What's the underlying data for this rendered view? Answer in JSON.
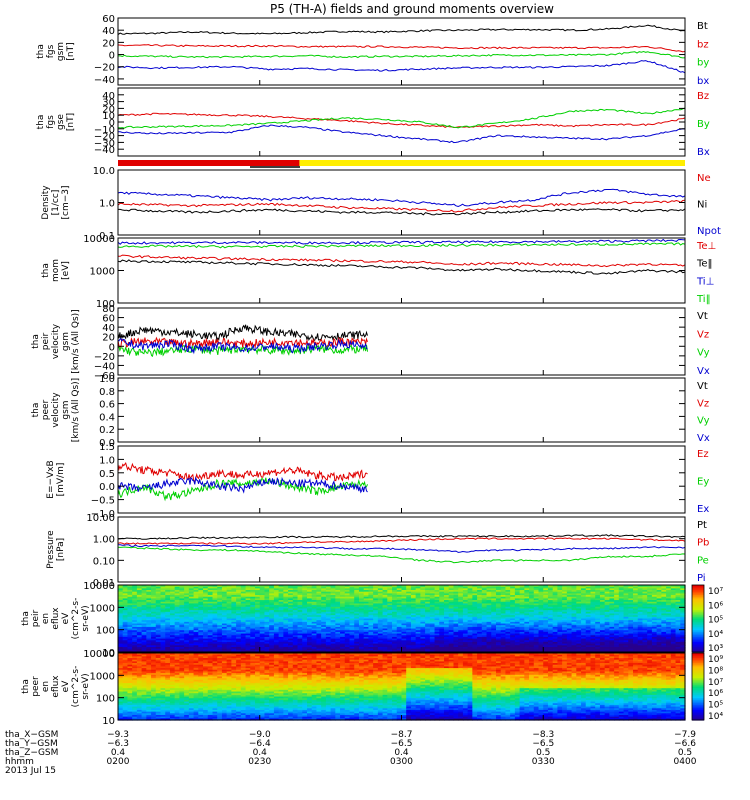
{
  "title": "P5 (TH-A) fields and ground moments overview",
  "colors": {
    "black": "#000000",
    "red": "#e00000",
    "green": "#00d000",
    "blue": "#0000d0",
    "yellow": "#ffee00"
  },
  "chart_data": [
    {
      "id": "fgs_gsm",
      "type": "line",
      "ylabel": [
        "tha",
        "fgs",
        "gsm",
        "[nT]"
      ],
      "ylim": [
        -50,
        60
      ],
      "log": false,
      "ticks": [
        "60",
        "40",
        "20",
        "0",
        "−20",
        "−40"
      ],
      "tickvals": [
        60,
        40,
        20,
        0,
        -20,
        -40
      ],
      "series": [
        {
          "name": "Bt",
          "color": "#000000",
          "approx": [
            34,
            35,
            37,
            35,
            34,
            36,
            38,
            37,
            39,
            40,
            41,
            41,
            40,
            42,
            48,
            38
          ]
        },
        {
          "name": "bz",
          "color": "#e00000",
          "approx": [
            15,
            15,
            14,
            14,
            14,
            13,
            13,
            13,
            12,
            11,
            11,
            11,
            11,
            11,
            13,
            5
          ]
        },
        {
          "name": "by",
          "color": "#00d000",
          "approx": [
            -2,
            -3,
            -4,
            -4,
            -3,
            -2,
            -4,
            -3,
            -3,
            -2,
            -1,
            -1,
            -1,
            0,
            5,
            -5
          ]
        },
        {
          "name": "bx",
          "color": "#0000d0",
          "approx": [
            -20,
            -22,
            -21,
            -20,
            -24,
            -23,
            -25,
            -26,
            -24,
            -22,
            -21,
            -21,
            -20,
            -18,
            -10,
            -30
          ]
        }
      ]
    },
    {
      "id": "fgs_gse",
      "type": "line",
      "ylabel": [
        "tha",
        "fgs",
        "gse",
        "[nT]"
      ],
      "ylim": [
        -50,
        50
      ],
      "log": false,
      "ticks": [
        "40",
        "30",
        "20",
        "10",
        "0",
        "−10",
        "−20",
        "−30",
        "−40"
      ],
      "tickvals": [
        40,
        30,
        20,
        10,
        0,
        -10,
        -20,
        -30,
        -40
      ],
      "series": [
        {
          "name": "Bz",
          "color": "#e00000",
          "approx": [
            10,
            12,
            11,
            10,
            8,
            5,
            2,
            -2,
            -5,
            -8,
            -6,
            -4,
            -6,
            -4,
            -4,
            5
          ]
        },
        {
          "name": "By",
          "color": "#00d000",
          "approx": [
            -8,
            -7,
            -6,
            -5,
            -2,
            2,
            6,
            4,
            0,
            -8,
            -2,
            5,
            16,
            18,
            12,
            20
          ]
        },
        {
          "name": "Bx",
          "color": "#0000d0",
          "approx": [
            -15,
            -17,
            -16,
            -15,
            -5,
            -8,
            -15,
            -20,
            -25,
            -30,
            -20,
            -22,
            -24,
            -25,
            -20,
            -10
          ]
        }
      ]
    },
    {
      "id": "density",
      "type": "line",
      "ylabel": [
        "Density",
        "[1/cc]",
        "[cm−3]"
      ],
      "ylim": [
        0.1,
        10
      ],
      "log": true,
      "ticks": [
        "10.0",
        "1.0",
        "0.1"
      ],
      "tickvals": [
        10,
        1,
        0.1
      ],
      "series": [
        {
          "name": "Ne",
          "color": "#e00000",
          "approx": [
            0.9,
            0.85,
            0.8,
            0.85,
            0.9,
            0.8,
            0.7,
            0.65,
            0.6,
            0.55,
            0.7,
            0.8,
            0.9,
            1.0,
            1.0,
            1.1
          ]
        },
        {
          "name": "Ni",
          "color": "#000000",
          "approx": [
            0.6,
            0.55,
            0.5,
            0.55,
            0.6,
            0.55,
            0.5,
            0.5,
            0.45,
            0.45,
            0.5,
            0.55,
            0.6,
            0.6,
            0.55,
            0.6
          ]
        },
        {
          "name": "Npot",
          "color": "#0000d0",
          "approx": [
            2.0,
            1.8,
            1.6,
            1.4,
            1.2,
            1.4,
            1.3,
            1.2,
            1.0,
            0.8,
            1.0,
            1.2,
            2.0,
            2.5,
            1.8,
            1.5
          ]
        }
      ]
    },
    {
      "id": "temperature",
      "type": "line",
      "ylabel": [
        "tha",
        "mom",
        "[eV]"
      ],
      "ylim": [
        100,
        10000
      ],
      "log": true,
      "ticks": [
        "10000",
        "1000",
        "100"
      ],
      "tickvals": [
        10000,
        1000,
        100
      ],
      "series": [
        {
          "name": "Te⊥",
          "color": "#e00000",
          "approx": [
            2800,
            2600,
            2400,
            2300,
            2200,
            2100,
            2000,
            1900,
            1800,
            1500,
            1700,
            1600,
            1500,
            1400,
            1600,
            1400
          ]
        },
        {
          "name": "Te‖",
          "color": "#000000",
          "approx": [
            2000,
            1900,
            1800,
            1700,
            1600,
            1500,
            1400,
            1300,
            1200,
            1000,
            1100,
            1000,
            900,
            800,
            1000,
            900
          ]
        },
        {
          "name": "Ti⊥",
          "color": "#0000d0",
          "approx": [
            7000,
            7100,
            7200,
            7300,
            7200,
            7100,
            7200,
            7300,
            7400,
            7500,
            7600,
            7700,
            7800,
            8000,
            8200,
            8500
          ]
        },
        {
          "name": "Ti‖",
          "color": "#00d000",
          "approx": [
            5500,
            5600,
            5500,
            5400,
            5500,
            5600,
            5700,
            5800,
            5900,
            6000,
            6100,
            6200,
            6300,
            6400,
            6500,
            6600
          ]
        }
      ]
    },
    {
      "id": "peir_velocity",
      "type": "line",
      "ylabel": [
        "tha",
        "peir",
        "velocity",
        "gsm",
        "[km/s (All Qs)]"
      ],
      "ylim": [
        -60,
        80
      ],
      "log": false,
      "xrange": [
        0,
        0.44
      ],
      "ticks": [
        "80",
        "60",
        "40",
        "20",
        "0",
        "−20",
        "−40",
        "−60"
      ],
      "tickvals": [
        80,
        60,
        40,
        20,
        0,
        -20,
        -40,
        -60
      ],
      "series": [
        {
          "name": "Vt",
          "color": "#000000",
          "approx": [
            20,
            35,
            30,
            25,
            20,
            40,
            30,
            25,
            20,
            22,
            25
          ]
        },
        {
          "name": "Vz",
          "color": "#e00000",
          "approx": [
            5,
            10,
            8,
            5,
            10,
            5,
            8,
            10,
            5,
            10,
            8
          ]
        },
        {
          "name": "Vy",
          "color": "#00d000",
          "approx": [
            -5,
            -15,
            -10,
            -5,
            -10,
            -5,
            -8,
            -10,
            -5,
            -8,
            -5
          ]
        },
        {
          "name": "Vx",
          "color": "#0000d0",
          "approx": [
            10,
            0,
            5,
            -5,
            0,
            -5,
            0,
            -5,
            0,
            5,
            0
          ]
        }
      ]
    },
    {
      "id": "peer_velocity",
      "type": "line",
      "ylabel": [
        "tha",
        "peer",
        "velocity",
        "gsm",
        "[km/s (All Qs)]"
      ],
      "ylim": [
        0,
        1
      ],
      "log": false,
      "ticks": [
        "1.0",
        "0.8",
        "0.6",
        "0.4",
        "0.2",
        "0.0"
      ],
      "tickvals": [
        1,
        0.8,
        0.6,
        0.4,
        0.2,
        0
      ],
      "series": [
        {
          "name": "Vt",
          "color": "#000000",
          "approx": []
        },
        {
          "name": "Vz",
          "color": "#e00000",
          "approx": []
        },
        {
          "name": "Vy",
          "color": "#00d000",
          "approx": []
        },
        {
          "name": "Vx",
          "color": "#0000d0",
          "approx": []
        }
      ]
    },
    {
      "id": "efield",
      "type": "line",
      "ylabel": [
        "E=−VxB",
        "[mV/m]"
      ],
      "ylim": [
        -1,
        1.5
      ],
      "log": false,
      "xrange": [
        0,
        0.44
      ],
      "ticks": [
        "1.5",
        "1.0",
        "0.5",
        "0.0",
        "−0.5",
        "−1.0"
      ],
      "tickvals": [
        1.5,
        1,
        0.5,
        0,
        -0.5,
        -1
      ],
      "series": [
        {
          "name": "Ez",
          "color": "#e00000",
          "approx": [
            0.8,
            0.6,
            0.5,
            0.3,
            0.5,
            0.4,
            0.5,
            0.6,
            0.4,
            0.3,
            0.5
          ]
        },
        {
          "name": "Ey",
          "color": "#00d000",
          "approx": [
            -0.3,
            0,
            -0.4,
            -0.2,
            0.1,
            0.1,
            0.2,
            0,
            -0.2,
            0,
            0.1
          ]
        },
        {
          "name": "Ex",
          "color": "#0000d0",
          "approx": [
            0,
            -0.1,
            0.1,
            0.2,
            0,
            -0.1,
            0.2,
            0.1,
            0.1,
            0,
            -0.1
          ]
        }
      ]
    },
    {
      "id": "pressure",
      "type": "line",
      "ylabel": [
        "Pressure",
        "[nPa]"
      ],
      "ylim": [
        0.01,
        10
      ],
      "log": true,
      "ticks": [
        "10.00",
        "1.00",
        "0.10",
        "0.01"
      ],
      "tickvals": [
        10,
        1,
        0.1,
        0.01
      ],
      "series": [
        {
          "name": "Pt",
          "color": "#000000",
          "approx": [
            1.0,
            1.0,
            1.1,
            1.1,
            1.2,
            1.2,
            1.2,
            1.3,
            1.3,
            1.3,
            1.3,
            1.3,
            1.4,
            1.4,
            1.3,
            1.2
          ]
        },
        {
          "name": "Pb",
          "color": "#e00000",
          "approx": [
            0.6,
            0.6,
            0.6,
            0.6,
            0.6,
            0.7,
            0.7,
            0.8,
            0.9,
            1.0,
            1.0,
            1.0,
            1.0,
            1.0,
            0.9,
            0.8
          ]
        },
        {
          "name": "Pe",
          "color": "#00d000",
          "approx": [
            0.4,
            0.35,
            0.3,
            0.3,
            0.25,
            0.2,
            0.18,
            0.15,
            0.1,
            0.08,
            0.1,
            0.1,
            0.1,
            0.15,
            0.15,
            0.2
          ]
        },
        {
          "name": "Pi",
          "color": "#0000d0",
          "approx": [
            0.5,
            0.45,
            0.5,
            0.45,
            0.4,
            0.4,
            0.35,
            0.35,
            0.3,
            0.25,
            0.3,
            0.3,
            0.35,
            0.35,
            0.4,
            0.4
          ]
        }
      ]
    },
    {
      "id": "peir_spec",
      "type": "heatmap",
      "ylabel": [
        "tha",
        "peir",
        "en",
        "eflux",
        "eV",
        "(cm^2-s-",
        "sr-eV)"
      ],
      "ylim": [
        10,
        10000
      ],
      "log": true,
      "ticks": [
        "10000",
        "1000",
        "100",
        "10"
      ],
      "tickvals": [
        10000,
        1000,
        100,
        10
      ],
      "colorbar": {
        "labels": [
          "10⁷",
          "10⁶",
          "10⁵",
          "10⁴",
          "10³"
        ],
        "range": [
          3,
          7
        ]
      }
    },
    {
      "id": "peer_spec",
      "type": "heatmap",
      "ylabel": [
        "tha",
        "peer",
        "en",
        "eflux",
        "eV",
        "(cm^2-s-",
        "sr-eV)"
      ],
      "ylim": [
        10,
        10000
      ],
      "log": true,
      "ticks": [
        "10000",
        "1000",
        "100",
        "10"
      ],
      "tickvals": [
        10000,
        1000,
        100,
        10
      ],
      "colorbar": {
        "labels": [
          "10⁹",
          "10⁸",
          "10⁷",
          "10⁶",
          "10⁵",
          "10⁴"
        ],
        "range": [
          4,
          9
        ]
      }
    }
  ],
  "time_axis": {
    "labels": [
      "tha_X−GSM",
      "tha_Y−GSM",
      "tha_Z−GSM",
      "hhmm",
      "2013 Jul 15"
    ],
    "ticks": [
      {
        "frac": 0,
        "vals": [
          "−9.3",
          "−6.3",
          "0.4",
          "0200"
        ]
      },
      {
        "frac": 0.25,
        "vals": [
          "−9.0",
          "−6.4",
          "0.4",
          "0230"
        ]
      },
      {
        "frac": 0.5,
        "vals": [
          "−8.7",
          "−6.5",
          "0.4",
          "0300"
        ]
      },
      {
        "frac": 0.75,
        "vals": [
          "−8.3",
          "−6.5",
          "0.5",
          "0330"
        ]
      },
      {
        "frac": 1,
        "vals": [
          "−7.9",
          "−6.6",
          "0.5",
          "0400"
        ]
      }
    ]
  },
  "mode_bar": {
    "red_until": 0.32,
    "colors": [
      "#e00000",
      "#ffee00"
    ]
  }
}
